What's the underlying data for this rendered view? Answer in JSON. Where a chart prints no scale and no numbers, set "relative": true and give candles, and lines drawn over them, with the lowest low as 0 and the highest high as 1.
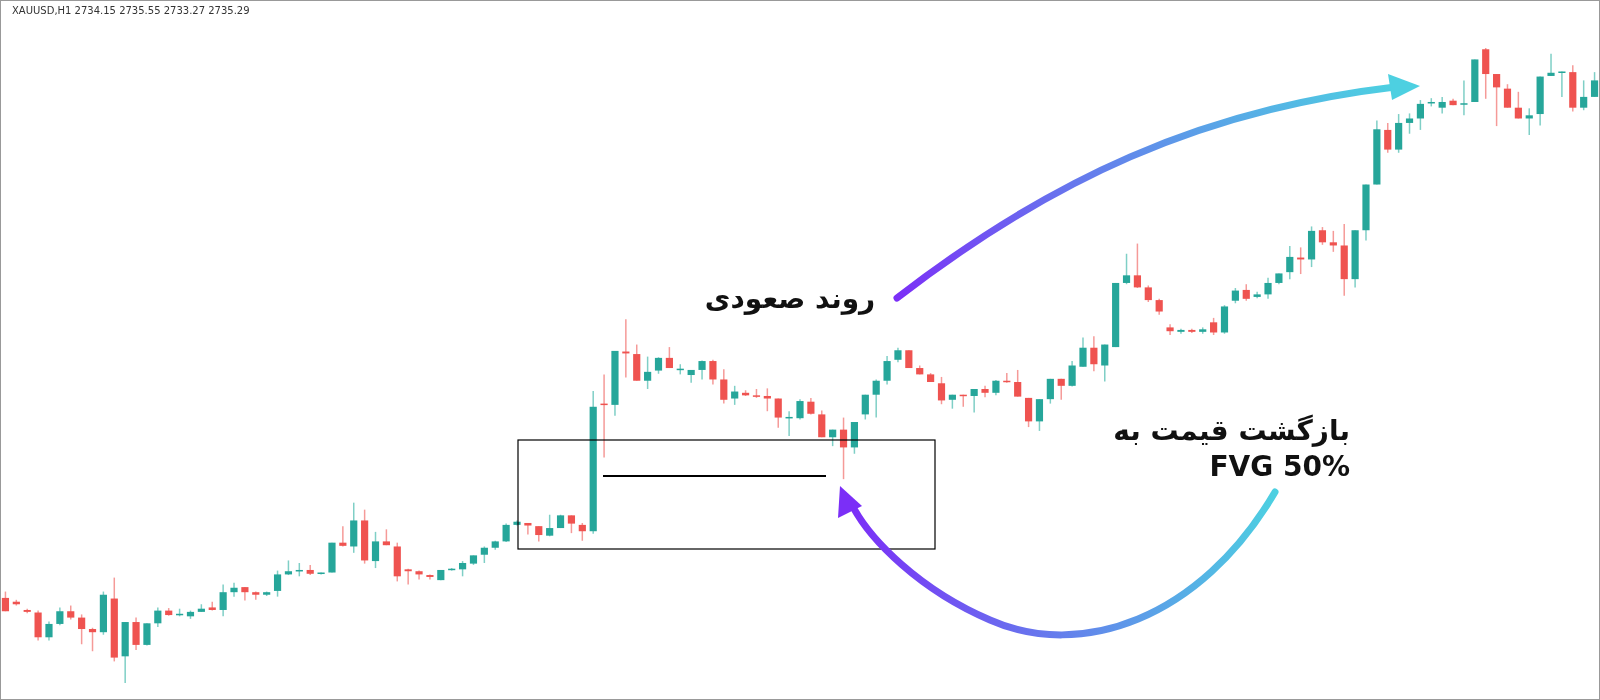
{
  "chart_data": {
    "type": "candlestick",
    "relative": true,
    "title": "XAUUSD,H1  2734.15 2735.55 2733.27 2735.29",
    "annotations": [
      "روند صعودی",
      "بازگشت قیمت به\nFVG 50%"
    ],
    "ref_lines": [
      {
        "axis": "y",
        "value": 0.326,
        "color": "#000000"
      }
    ],
    "categories": [
      null,
      null,
      null,
      null,
      null,
      null,
      null,
      null,
      null,
      null,
      null,
      null,
      null,
      null,
      null,
      null,
      null,
      null,
      null,
      null,
      null,
      null,
      null,
      null,
      null,
      null,
      null,
      null,
      null,
      null,
      null,
      null,
      null,
      null,
      null,
      null,
      null,
      null,
      null,
      null,
      null,
      null,
      null,
      null,
      null,
      null,
      null,
      null,
      null,
      null,
      null,
      null,
      null,
      null,
      null,
      null,
      null,
      null,
      null,
      null,
      null,
      null,
      null,
      null,
      null,
      null,
      null,
      null,
      null,
      null,
      null,
      null,
      null,
      null,
      null,
      null,
      null,
      null,
      null,
      null,
      null,
      null,
      null,
      null,
      null,
      null,
      null,
      null,
      null,
      null,
      null,
      null,
      null,
      null,
      null,
      null,
      null,
      null,
      null,
      null,
      null,
      null,
      null,
      null,
      null,
      null,
      null,
      null,
      null,
      null,
      null,
      null,
      null,
      null,
      null,
      null,
      null,
      null,
      null,
      null,
      null,
      null,
      null,
      null,
      null,
      null,
      null,
      null,
      null,
      null,
      null,
      null,
      null,
      null,
      null,
      null,
      null,
      null,
      null,
      null,
      null,
      null,
      null,
      null,
      null,
      null,
      null
    ],
    "ohlc": [
      [
        0.134,
        0.144,
        0.113,
        0.113
      ],
      [
        0.128,
        0.131,
        0.122,
        0.124
      ],
      [
        0.115,
        0.117,
        0.11,
        0.112
      ],
      [
        0.111,
        0.114,
        0.067,
        0.072
      ],
      [
        0.072,
        0.097,
        0.067,
        0.093
      ],
      [
        0.093,
        0.119,
        0.091,
        0.113
      ],
      [
        0.113,
        0.122,
        0.1,
        0.103
      ],
      [
        0.103,
        0.108,
        0.061,
        0.085
      ],
      [
        0.085,
        0.087,
        0.05,
        0.08
      ],
      [
        0.08,
        0.144,
        0.076,
        0.139
      ],
      [
        0.133,
        0.166,
        0.034,
        0.04
      ],
      [
        0.042,
        0.096,
        0.0,
        0.096
      ],
      [
        0.096,
        0.103,
        0.052,
        0.06
      ],
      [
        0.06,
        0.094,
        0.059,
        0.094
      ],
      [
        0.094,
        0.119,
        0.088,
        0.114
      ],
      [
        0.114,
        0.118,
        0.106,
        0.107
      ],
      [
        0.107,
        0.117,
        0.105,
        0.109
      ],
      [
        0.105,
        0.114,
        0.101,
        0.112
      ],
      [
        0.112,
        0.124,
        0.112,
        0.117
      ],
      [
        0.119,
        0.128,
        0.114,
        0.115
      ],
      [
        0.115,
        0.155,
        0.105,
        0.143
      ],
      [
        0.143,
        0.158,
        0.136,
        0.15
      ],
      [
        0.151,
        0.151,
        0.13,
        0.143
      ],
      [
        0.143,
        0.144,
        0.131,
        0.139
      ],
      [
        0.139,
        0.144,
        0.137,
        0.143
      ],
      [
        0.145,
        0.177,
        0.136,
        0.171
      ],
      [
        0.171,
        0.193,
        0.17,
        0.176
      ],
      [
        0.176,
        0.189,
        0.168,
        0.178
      ],
      [
        0.178,
        0.186,
        0.17,
        0.172
      ],
      [
        0.172,
        0.174,
        0.171,
        0.174
      ],
      [
        0.174,
        0.221,
        0.174,
        0.221
      ],
      [
        0.221,
        0.247,
        0.215,
        0.216
      ],
      [
        0.215,
        0.284,
        0.205,
        0.256
      ],
      [
        0.256,
        0.273,
        0.188,
        0.193
      ],
      [
        0.192,
        0.238,
        0.181,
        0.223
      ],
      [
        0.223,
        0.242,
        0.217,
        0.217
      ],
      [
        0.215,
        0.221,
        0.16,
        0.168
      ],
      [
        0.179,
        0.18,
        0.155,
        0.176
      ],
      [
        0.176,
        0.177,
        0.163,
        0.171
      ],
      [
        0.17,
        0.171,
        0.163,
        0.167
      ],
      [
        0.162,
        0.178,
        0.162,
        0.178
      ],
      [
        0.178,
        0.181,
        0.177,
        0.18
      ],
      [
        0.179,
        0.192,
        0.168,
        0.189
      ],
      [
        0.188,
        0.201,
        0.186,
        0.201
      ],
      [
        0.202,
        0.215,
        0.189,
        0.213
      ],
      [
        0.213,
        0.224,
        0.21,
        0.223
      ],
      [
        0.223,
        0.251,
        0.222,
        0.249
      ],
      [
        0.249,
        0.256,
        0.248,
        0.254
      ],
      [
        0.252,
        0.252,
        0.234,
        0.248
      ],
      [
        0.247,
        0.247,
        0.223,
        0.233
      ],
      [
        0.232,
        0.265,
        0.231,
        0.244
      ],
      [
        0.244,
        0.265,
        0.244,
        0.264
      ],
      [
        0.264,
        0.264,
        0.236,
        0.251
      ],
      [
        0.249,
        0.252,
        0.224,
        0.239
      ],
      [
        0.239,
        0.46,
        0.235,
        0.435
      ],
      [
        0.44,
        0.486,
        0.355,
        0.438
      ],
      [
        0.438,
        0.523,
        0.421,
        0.523
      ],
      [
        0.522,
        0.573,
        0.481,
        0.519
      ],
      [
        0.518,
        0.533,
        0.476,
        0.476
      ],
      [
        0.476,
        0.514,
        0.463,
        0.49
      ],
      [
        0.492,
        0.513,
        0.487,
        0.512
      ],
      [
        0.512,
        0.529,
        0.496,
        0.496
      ],
      [
        0.494,
        0.502,
        0.486,
        0.495
      ],
      [
        0.485,
        0.493,
        0.473,
        0.493
      ],
      [
        0.493,
        0.508,
        0.478,
        0.507
      ],
      [
        0.507,
        0.509,
        0.47,
        0.478
      ],
      [
        0.478,
        0.494,
        0.44,
        0.446
      ],
      [
        0.448,
        0.468,
        0.438,
        0.459
      ],
      [
        0.457,
        0.461,
        0.452,
        0.453
      ],
      [
        0.453,
        0.463,
        0.449,
        0.452
      ],
      [
        0.452,
        0.464,
        0.428,
        0.448
      ],
      [
        0.448,
        0.448,
        0.402,
        0.418
      ],
      [
        0.417,
        0.428,
        0.389,
        0.419
      ],
      [
        0.417,
        0.447,
        0.415,
        0.444
      ],
      [
        0.443,
        0.449,
        0.423,
        0.424
      ],
      [
        0.423,
        0.429,
        0.387,
        0.387
      ],
      [
        0.387,
        0.399,
        0.373,
        0.399
      ],
      [
        0.399,
        0.418,
        0.321,
        0.371
      ],
      [
        0.371,
        0.411,
        0.361,
        0.411
      ],
      [
        0.423,
        0.454,
        0.415,
        0.454
      ],
      [
        0.454,
        0.478,
        0.418,
        0.476
      ],
      [
        0.476,
        0.515,
        0.47,
        0.507
      ],
      [
        0.509,
        0.528,
        0.505,
        0.524
      ],
      [
        0.524,
        0.524,
        0.496,
        0.496
      ],
      [
        0.496,
        0.5,
        0.486,
        0.486
      ],
      [
        0.486,
        0.488,
        0.474,
        0.474
      ],
      [
        0.472,
        0.482,
        0.439,
        0.445
      ],
      [
        0.446,
        0.454,
        0.432,
        0.454
      ],
      [
        0.454,
        0.454,
        0.435,
        0.452
      ],
      [
        0.452,
        0.463,
        0.426,
        0.463
      ],
      [
        0.463,
        0.468,
        0.45,
        0.457
      ],
      [
        0.457,
        0.477,
        0.453,
        0.476
      ],
      [
        0.476,
        0.488,
        0.473,
        0.474
      ],
      [
        0.474,
        0.493,
        0.451,
        0.451
      ],
      [
        0.449,
        0.449,
        0.403,
        0.412
      ],
      [
        0.412,
        0.447,
        0.397,
        0.447
      ],
      [
        0.447,
        0.479,
        0.44,
        0.479
      ],
      [
        0.479,
        0.479,
        0.446,
        0.468
      ],
      [
        0.468,
        0.507,
        0.467,
        0.5
      ],
      [
        0.498,
        0.544,
        0.498,
        0.528
      ],
      [
        0.528,
        0.546,
        0.491,
        0.502
      ],
      [
        0.5,
        0.533,
        0.475,
        0.533
      ],
      [
        0.529,
        0.63,
        0.529,
        0.63
      ],
      [
        0.63,
        0.676,
        0.628,
        0.642
      ],
      [
        0.642,
        0.692,
        0.622,
        0.623
      ],
      [
        0.623,
        0.626,
        0.6,
        0.603
      ],
      [
        0.603,
        0.605,
        0.58,
        0.585
      ],
      [
        0.56,
        0.565,
        0.548,
        0.554
      ],
      [
        0.553,
        0.558,
        0.55,
        0.556
      ],
      [
        0.556,
        0.558,
        0.551,
        0.553
      ],
      [
        0.553,
        0.56,
        0.55,
        0.557
      ],
      [
        0.568,
        0.575,
        0.548,
        0.552
      ],
      [
        0.552,
        0.595,
        0.55,
        0.593
      ],
      [
        0.602,
        0.622,
        0.598,
        0.618
      ],
      [
        0.619,
        0.628,
        0.602,
        0.605
      ],
      [
        0.608,
        0.616,
        0.606,
        0.612
      ],
      [
        0.612,
        0.638,
        0.605,
        0.63
      ],
      [
        0.63,
        0.645,
        0.628,
        0.645
      ],
      [
        0.647,
        0.688,
        0.636,
        0.671
      ],
      [
        0.67,
        0.686,
        0.644,
        0.667
      ],
      [
        0.667,
        0.719,
        0.655,
        0.712
      ],
      [
        0.713,
        0.718,
        0.69,
        0.694
      ],
      [
        0.694,
        0.712,
        0.679,
        0.689
      ],
      [
        0.689,
        0.723,
        0.61,
        0.636
      ],
      [
        0.636,
        0.713,
        0.623,
        0.713
      ],
      [
        0.713,
        0.785,
        0.697,
        0.785
      ],
      [
        0.785,
        0.886,
        0.785,
        0.872
      ],
      [
        0.871,
        0.882,
        0.835,
        0.84
      ],
      [
        0.84,
        0.896,
        0.835,
        0.882
      ],
      [
        0.882,
        0.897,
        0.865,
        0.889
      ],
      [
        0.889,
        0.918,
        0.871,
        0.912
      ],
      [
        0.913,
        0.921,
        0.908,
        0.915
      ],
      [
        0.906,
        0.923,
        0.897,
        0.915
      ],
      [
        0.917,
        0.92,
        0.91,
        0.91
      ],
      [
        0.911,
        0.949,
        0.894,
        0.913
      ],
      [
        0.915,
        0.982,
        0.915,
        0.982
      ],
      [
        0.998,
        1.0,
        0.92,
        0.959
      ],
      [
        0.959,
        0.959,
        0.877,
        0.938
      ],
      [
        0.936,
        0.943,
        0.906,
        0.906
      ],
      [
        0.906,
        0.931,
        0.889,
        0.889
      ],
      [
        0.889,
        0.905,
        0.863,
        0.894
      ],
      [
        0.896,
        0.955,
        0.878,
        0.955
      ],
      [
        0.956,
        0.991,
        0.956,
        0.961
      ],
      [
        0.962,
        0.963,
        0.923,
        0.963
      ],
      [
        0.962,
        0.973,
        0.9,
        0.906
      ],
      [
        0.906,
        0.949,
        0.902,
        0.923
      ],
      [
        0.923,
        0.962,
        0.923,
        0.949
      ]
    ]
  }
}
